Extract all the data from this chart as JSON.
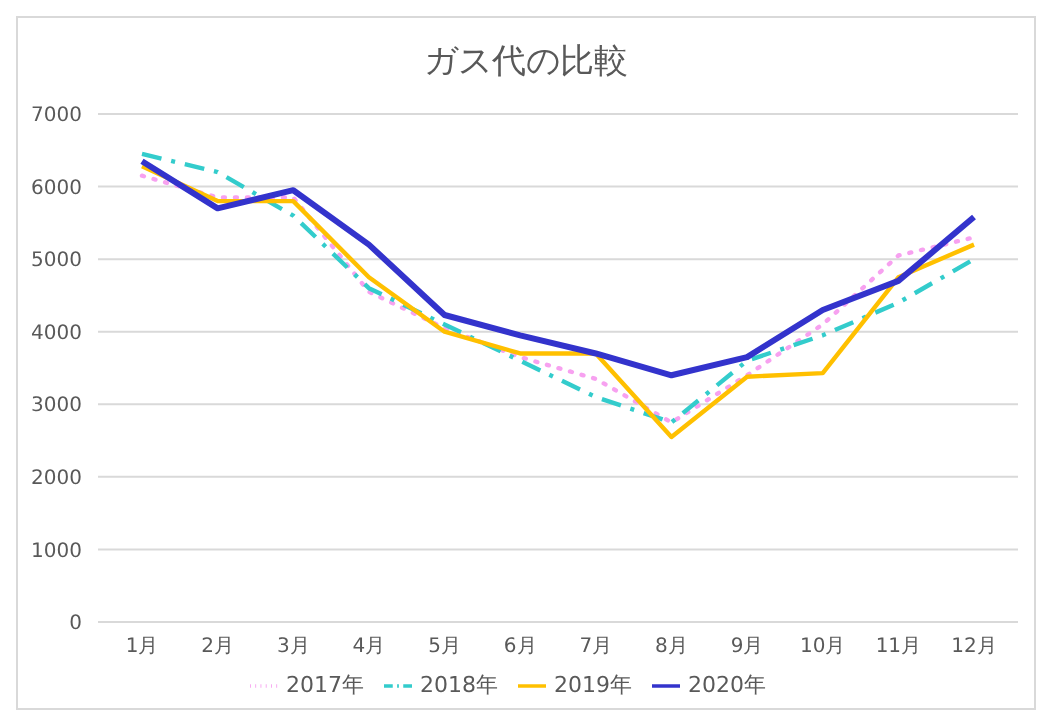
{
  "chart_data": {
    "type": "line",
    "title": "ガス代の比較",
    "categories": [
      "1月",
      "2月",
      "3月",
      "4月",
      "5月",
      "6月",
      "7月",
      "8月",
      "9月",
      "10月",
      "11月",
      "12月"
    ],
    "series": [
      {
        "name": "2017年",
        "color": "#f7a1f0",
        "line_style": "dotted",
        "values": [
          6150,
          5850,
          5850,
          4550,
          4050,
          3650,
          3350,
          2750,
          3400,
          4100,
          5050,
          5300
        ]
      },
      {
        "name": "2018年",
        "color": "#33cccc",
        "line_style": "dashed",
        "values": [
          6450,
          6200,
          5600,
          4600,
          4100,
          3600,
          3100,
          2750,
          3600,
          3950,
          4400,
          5000
        ]
      },
      {
        "name": "2019年",
        "color": "#ffc000",
        "line_style": "solid",
        "values": [
          6280,
          5800,
          5800,
          4750,
          4000,
          3700,
          3700,
          2550,
          3380,
          3430,
          4750,
          5200
        ]
      },
      {
        "name": "2020年",
        "color": "#3333cc",
        "line_style": "solid",
        "values": [
          6350,
          5700,
          5950,
          5200,
          4230,
          3950,
          3700,
          3400,
          3650,
          4300,
          4700,
          5580
        ]
      }
    ],
    "ylim": [
      0,
      7000
    ],
    "yticks": [
      0,
      1000,
      2000,
      3000,
      4000,
      5000,
      6000,
      7000
    ],
    "grid": "y",
    "legend": "bottom",
    "marker": "none"
  }
}
